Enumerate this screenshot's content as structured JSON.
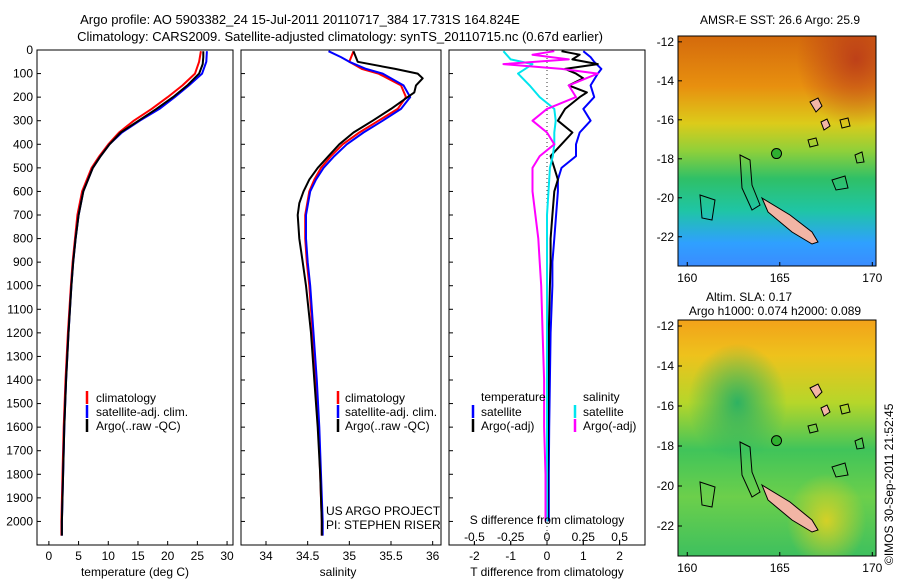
{
  "title_line1": "Argo profile: AO 5903382_24 15-Jul-2011 20110717_384 17.731S 164.824E",
  "title_line2": "Climatology: CARS2009. Satellite-adjusted climatology: synTS_20110715.nc (0.67d earlier)",
  "timestamp": "©IMOS 30-Sep-2011 21:52:45",
  "project_line1": "US ARGO PROJECT",
  "project_line2": "PI: STEPHEN RISER",
  "colors": {
    "climatology": "#ff0000",
    "satellite": "#0000ff",
    "argo": "#000000",
    "satellite_salinity": "#00e5ee",
    "argo_salinity": "#ff00ff"
  },
  "chart_data": [
    {
      "type": "line",
      "name": "temperature",
      "xlabel": "temperature (deg C)",
      "ylabel": "",
      "xlim": [
        -2,
        31
      ],
      "ylim": [
        2100,
        0
      ],
      "xticks": [
        0,
        5,
        10,
        15,
        20,
        25,
        30
      ],
      "yticks": [
        0,
        100,
        200,
        300,
        400,
        500,
        600,
        700,
        800,
        900,
        1000,
        1100,
        1200,
        1300,
        1400,
        1500,
        1600,
        1700,
        1800,
        1900,
        2000
      ],
      "legend": [
        "climatology",
        "satellite-adj. clim.",
        "Argo(..raw -QC)"
      ],
      "series": [
        {
          "name": "climatology",
          "color": "#ff0000",
          "depth": [
            5,
            50,
            100,
            150,
            200,
            250,
            300,
            350,
            400,
            450,
            500,
            600,
            700,
            800,
            900,
            1000,
            1200,
            1400,
            1600,
            1800,
            2000,
            2060
          ],
          "values": [
            25.6,
            25.3,
            24.6,
            22.5,
            20.0,
            17.3,
            14.3,
            11.8,
            10.0,
            8.5,
            7.2,
            5.6,
            4.8,
            4.4,
            4.0,
            3.7,
            3.2,
            2.8,
            2.5,
            2.3,
            2.1,
            2.1
          ]
        },
        {
          "name": "satellite-adj. clim.",
          "color": "#0000ff",
          "depth": [
            5,
            50,
            100,
            150,
            200,
            250,
            300,
            350,
            400,
            450,
            500,
            600,
            700,
            800,
            900,
            1000,
            1200,
            1400,
            1600,
            1800,
            2000,
            2060
          ],
          "values": [
            26.6,
            26.5,
            25.8,
            23.6,
            21.2,
            18.6,
            15.3,
            12.3,
            10.2,
            8.7,
            7.4,
            5.8,
            5.0,
            4.5,
            4.1,
            3.8,
            3.3,
            2.9,
            2.6,
            2.4,
            2.2,
            2.2
          ]
        },
        {
          "name": "Argo(..raw -QC)",
          "color": "#000000",
          "depth": [
            5,
            30,
            60,
            100,
            150,
            200,
            250,
            300,
            350,
            400,
            450,
            500,
            600,
            700,
            800,
            900,
            1000,
            1200,
            1400,
            1600,
            1800,
            2000,
            2060
          ],
          "values": [
            26.0,
            26.0,
            25.9,
            25.3,
            23.3,
            20.9,
            18.1,
            15.1,
            12.1,
            10.2,
            8.7,
            7.4,
            5.8,
            5.0,
            4.5,
            4.1,
            3.8,
            3.3,
            2.9,
            2.6,
            2.4,
            2.2,
            2.2
          ]
        }
      ]
    },
    {
      "type": "line",
      "name": "salinity",
      "xlabel": "salinity",
      "ylabel": "",
      "xlim": [
        33.7,
        36.1
      ],
      "ylim": [
        2100,
        0
      ],
      "xticks": [
        34,
        34.5,
        35,
        35.5,
        36
      ],
      "legend": [
        "climatology",
        "satellite-adj. clim.",
        "Argo(..raw -QC)"
      ],
      "series": [
        {
          "name": "climatology",
          "color": "#ff0000",
          "depth": [
            5,
            50,
            80,
            100,
            150,
            200,
            250,
            300,
            350,
            400,
            450,
            500,
            550,
            600,
            700,
            800,
            900,
            1000,
            1200,
            1400,
            1600,
            1800,
            2000,
            2060
          ],
          "values": [
            35.05,
            35.0,
            35.15,
            35.35,
            35.62,
            35.68,
            35.58,
            35.35,
            35.12,
            34.92,
            34.78,
            34.66,
            34.58,
            34.52,
            34.47,
            34.47,
            34.49,
            34.52,
            34.56,
            34.6,
            34.63,
            34.65,
            34.67,
            34.67
          ]
        },
        {
          "name": "satellite-adj. clim.",
          "color": "#0000ff",
          "depth": [
            5,
            30,
            50,
            80,
            100,
            150,
            200,
            250,
            300,
            350,
            400,
            450,
            500,
            550,
            600,
            700,
            800,
            900,
            1000,
            1200,
            1400,
            1600,
            1800,
            2000,
            2060
          ],
          "values": [
            34.75,
            34.9,
            35.0,
            35.2,
            35.4,
            35.65,
            35.73,
            35.62,
            35.4,
            35.17,
            34.97,
            34.82,
            34.69,
            34.6,
            34.53,
            34.48,
            34.48,
            34.5,
            34.53,
            34.57,
            34.61,
            34.64,
            34.66,
            34.68,
            34.68
          ]
        },
        {
          "name": "Argo(..raw -QC)",
          "color": "#000000",
          "depth": [
            5,
            50,
            80,
            100,
            120,
            150,
            180,
            200,
            250,
            300,
            350,
            400,
            450,
            500,
            550,
            600,
            650,
            700,
            800,
            900,
            1000,
            1200,
            1400,
            1600,
            1800,
            2000,
            2060
          ],
          "values": [
            35.05,
            35.1,
            35.55,
            35.82,
            35.88,
            35.8,
            35.78,
            35.7,
            35.5,
            35.28,
            35.05,
            34.88,
            34.75,
            34.62,
            34.52,
            34.45,
            34.4,
            34.38,
            34.4,
            34.44,
            34.48,
            34.54,
            34.58,
            34.62,
            34.65,
            34.67,
            34.67
          ]
        }
      ]
    },
    {
      "type": "line",
      "name": "difference",
      "xlabel": "T difference from climatology",
      "xlabel_top": "S difference from climatology",
      "ylabel": "",
      "xlim_T": [
        -2.7,
        2.7
      ],
      "xticks_T": [
        -2,
        -1,
        0,
        1,
        2
      ],
      "xlim_S": [
        -0.675,
        0.675
      ],
      "xticks_S": [
        "-0.5",
        "-0.25",
        "0",
        "0.25",
        "0.5"
      ],
      "legend_temperature_title": "temperature",
      "legend_salinity_title": "salinity",
      "legend": [
        "satellite",
        "Argo(-adj)",
        "satellite",
        "Argo(-adj)"
      ],
      "series": [
        {
          "name": "temperature satellite",
          "color": "#0000ff",
          "depth": [
            5,
            30,
            50,
            80,
            100,
            150,
            200,
            250,
            300,
            350,
            400,
            450,
            500,
            550,
            600,
            700,
            800,
            900,
            1000,
            1200,
            1400,
            1600,
            1800,
            2000
          ],
          "values": [
            1.0,
            1.2,
            1.3,
            1.5,
            1.4,
            1.2,
            1.3,
            1.0,
            1.2,
            0.9,
            0.8,
            0.8,
            0.4,
            0.3,
            0.3,
            0.25,
            0.2,
            0.15,
            0.15,
            0.1,
            0.08,
            0.06,
            0.05,
            0.05
          ]
        },
        {
          "name": "temperature Argo(-adj)",
          "color": "#000000",
          "depth": [
            5,
            20,
            40,
            60,
            80,
            100,
            120,
            150,
            180,
            200,
            250,
            300,
            350,
            400,
            450,
            500,
            550,
            600,
            700,
            800,
            900,
            1000,
            1200,
            1400,
            1600,
            1800,
            2000
          ],
          "values": [
            0.4,
            0.9,
            0.7,
            1.4,
            0.5,
            0.8,
            1.0,
            0.6,
            1.1,
            0.9,
            0.5,
            0.3,
            0.7,
            0.4,
            0.1,
            0.2,
            0.3,
            0.2,
            0.15,
            0.1,
            0.1,
            0.08,
            0.05,
            0.04,
            0.03,
            0.02,
            0.02
          ]
        },
        {
          "name": "salinity satellite",
          "color": "#00e5ee",
          "depth": [
            5,
            40,
            60,
            80,
            100,
            150,
            200,
            250,
            300,
            350,
            400,
            450,
            500,
            600,
            700,
            800,
            900,
            1000,
            1200,
            1400,
            1600,
            1800,
            2000
          ],
          "values": [
            -0.3,
            -0.25,
            -0.1,
            -0.15,
            -0.2,
            -0.12,
            -0.05,
            0.05,
            0.06,
            0.05,
            0.05,
            0.04,
            0.02,
            0.01,
            0.0,
            0.0,
            0.0,
            0.0,
            0.0,
            0.0,
            0.0,
            0.0,
            0.0
          ]
        },
        {
          "name": "salinity Argo(-adj)",
          "color": "#ff00ff",
          "depth": [
            5,
            20,
            40,
            60,
            80,
            100,
            150,
            200,
            250,
            300,
            350,
            400,
            450,
            500,
            600,
            700,
            800,
            900,
            1000,
            1200,
            1400,
            1600,
            1800,
            2000
          ],
          "values": [
            0.05,
            -0.1,
            0.15,
            -0.3,
            0.1,
            0.35,
            0.15,
            0.2,
            0.0,
            -0.1,
            0.0,
            0.05,
            -0.05,
            -0.1,
            -0.1,
            -0.08,
            -0.06,
            -0.05,
            -0.04,
            -0.03,
            -0.02,
            -0.02,
            -0.01,
            -0.01
          ]
        }
      ]
    },
    {
      "type": "heatmap",
      "name": "sst-map",
      "title": "AMSR-E SST: 26.6 Argo: 25.9",
      "xticks": [
        160,
        165,
        170
      ],
      "yticks": [
        -12,
        -14,
        -16,
        -18,
        -20,
        -22
      ],
      "xlim": [
        159.5,
        170.2
      ],
      "ylim": [
        -23.5,
        -11.7
      ],
      "marker": [
        164.824,
        -17.731
      ]
    },
    {
      "type": "heatmap",
      "name": "sla-map",
      "title_line1": "Altim. SLA: 0.17",
      "title_line2": "Argo h1000: 0.074 h2000: 0.089",
      "xticks": [
        160,
        165,
        170
      ],
      "yticks": [
        -12,
        -14,
        -16,
        -18,
        -20,
        -22
      ],
      "xlim": [
        159.5,
        170.2
      ],
      "ylim": [
        -23.5,
        -11.7
      ],
      "marker": [
        164.824,
        -17.731
      ]
    }
  ]
}
